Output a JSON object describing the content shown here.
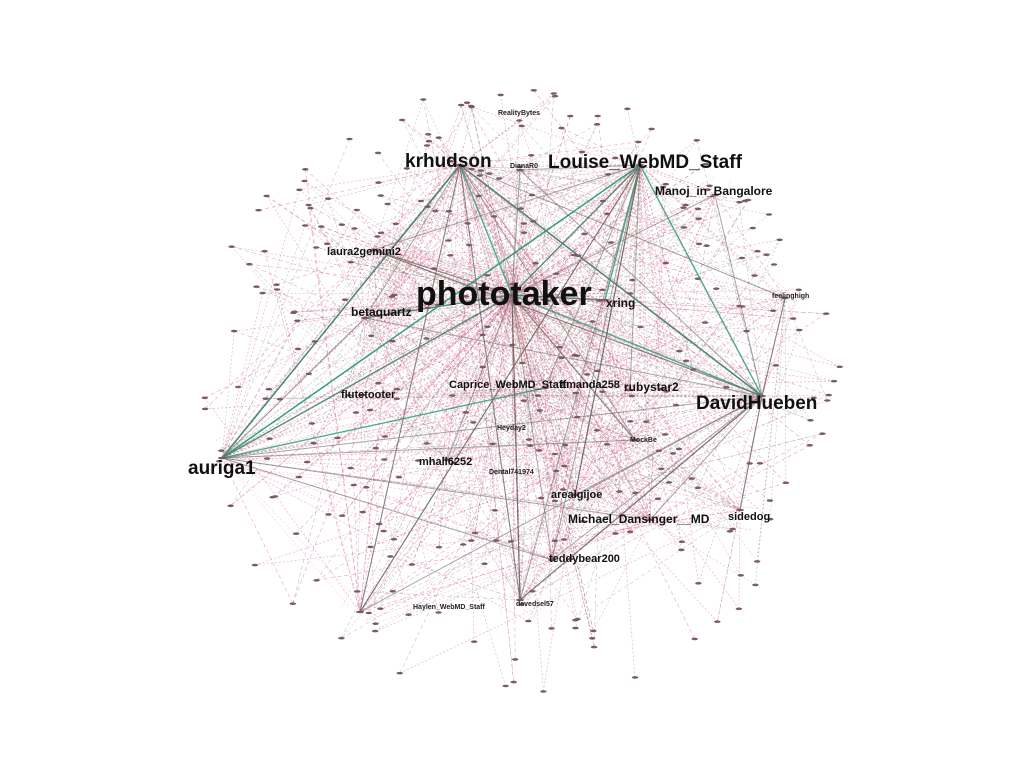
{
  "colors": {
    "background": "#ffffff",
    "edge_pink": "#d95f86",
    "edge_gray": "#6f6a66",
    "edge_green": "#2e9c7c",
    "node": "#7a5a63",
    "label": "#111111"
  },
  "labels": {
    "phototaker": "phototaker",
    "xring": "xring",
    "krhudson": "krhudson",
    "louise": "Louise_WebMD_Staff",
    "manoj": "Manoj_in_Bangalore",
    "laura": "laura2gemini2",
    "betaquartz": "betaquartz",
    "flutetooter": "flutetooter",
    "caprice": "Caprice_WebMD_Staff",
    "amanda": "amanda258",
    "rubystar": "rubystar2",
    "davidhueben": "DavidHueben",
    "auriga": "auriga1",
    "mhall": "mhall6252",
    "arealgijoe": "arealgijoe",
    "michael": "Michael_Dansinger__MD",
    "sidedog": "sidedog",
    "teddybear": "teddybear200",
    "davedsel": "davedsel57",
    "haylen": "Haylen_WebMD_Staff",
    "mockbe": "MockBe",
    "dianarose": "DianaR0",
    "realitybytes": "RealityBytes",
    "dental": "Dental741974",
    "feelinghigh": "feelinghigh",
    "heyday": "Heyday2"
  }
}
